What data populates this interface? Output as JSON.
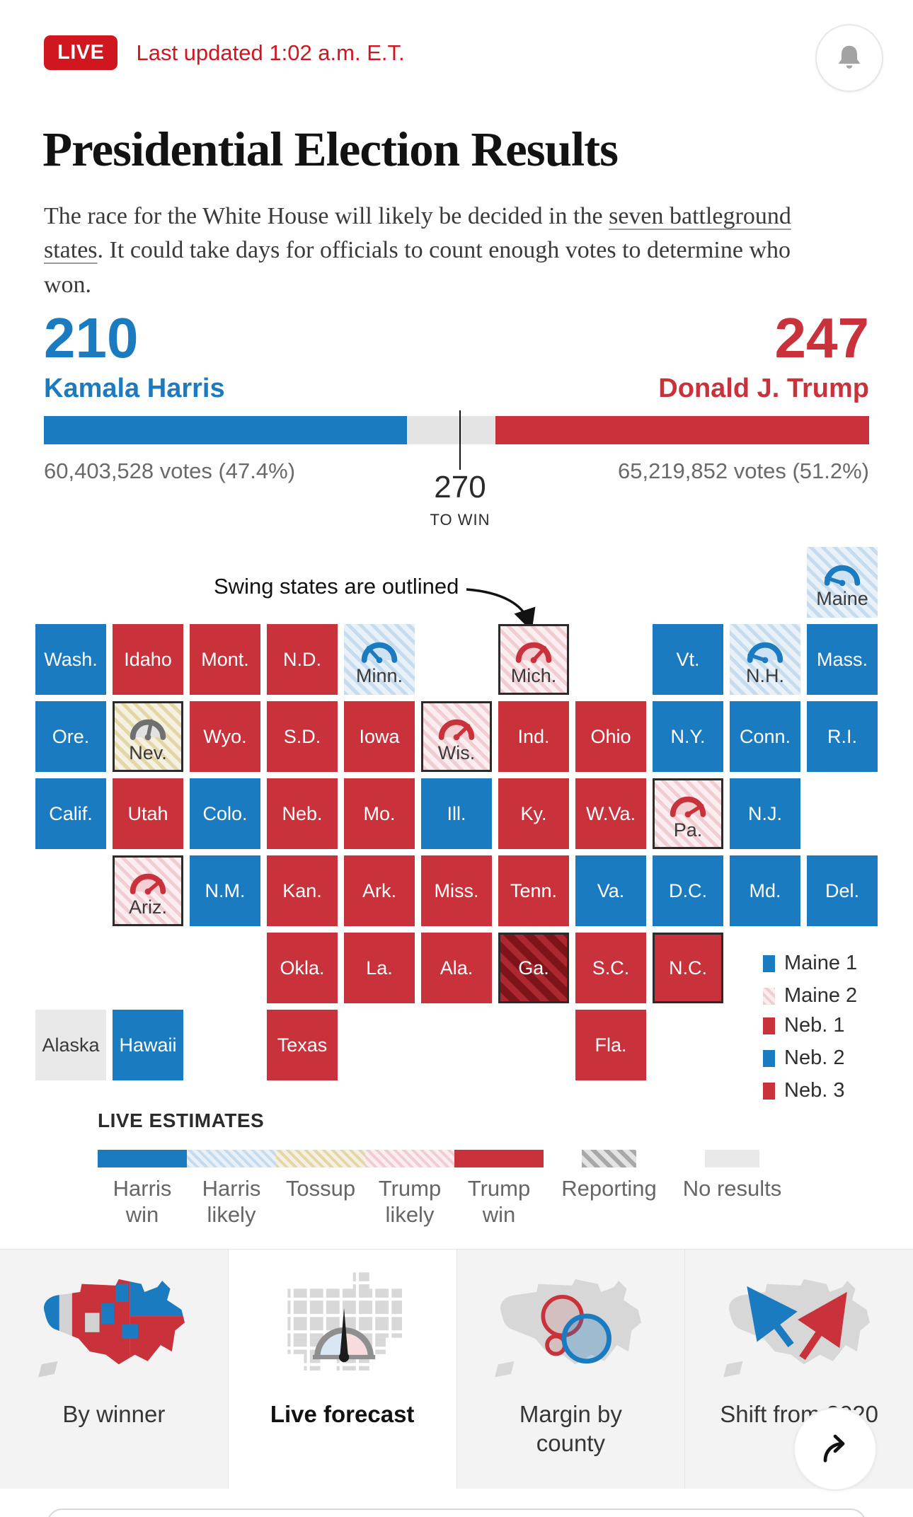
{
  "colors": {
    "accent_blue": "#1a7bc1",
    "accent_red": "#c9323b",
    "live_red": "#d0161f",
    "gray_bar": "#e4e4e4",
    "outline": "#2b2b2b"
  },
  "header": {
    "live_badge": "LIVE",
    "updated": "Last updated 1:02 a.m. E.T."
  },
  "hero": {
    "title": "Presidential Election Results",
    "dek_before": "The race for the White House will likely be decided in the ",
    "dek_link": "seven battleground states",
    "dek_after": ". It could take days for officials to count enough votes to determine who won."
  },
  "scoreboard": {
    "harris": {
      "ev": "210",
      "name": "Kamala Harris",
      "votes": "60,403,528 votes (47.4%)"
    },
    "trump": {
      "ev": "247",
      "name": "Donald J. Trump",
      "votes": "65,219,852 votes (51.2%)"
    },
    "marker": {
      "value": "270",
      "label": "TO WIN"
    }
  },
  "map": {
    "annotation": "Swing states are outlined",
    "legends": {
      "maine": [
        {
          "label": "Maine 1",
          "type": "harris-win"
        },
        {
          "label": "Maine 2",
          "type": "trump-likely"
        }
      ],
      "neb": [
        {
          "label": "Neb. 1",
          "type": "trump-win"
        },
        {
          "label": "Neb. 2",
          "type": "harris-win"
        },
        {
          "label": "Neb. 3",
          "type": "trump-win"
        }
      ]
    }
  },
  "chart_data": {
    "type": "heatmap",
    "title": "Presidential Election Results — electoral cartogram with live estimates",
    "summary": {
      "harris_electoral": 210,
      "trump_electoral": 247,
      "needed_to_win": 270,
      "harris_votes": "60,403,528",
      "harris_pct": 47.4,
      "trump_votes": "65,219,852",
      "trump_pct": 51.2
    },
    "legend_position": "below",
    "statuses": [
      "harris-win",
      "harris-likely",
      "tossup",
      "trump-likely",
      "trump-win",
      "reporting",
      "no-results"
    ],
    "cells": [
      {
        "label": "Maine",
        "row": 0,
        "col": 11,
        "status": "harris-likely",
        "outlined": false,
        "gauge": "blue",
        "angle": -72
      },
      {
        "label": "Wash.",
        "row": 1,
        "col": 1,
        "status": "harris-win",
        "outlined": false,
        "gauge": null
      },
      {
        "label": "Idaho",
        "row": 1,
        "col": 2,
        "status": "trump-win",
        "outlined": false,
        "gauge": null
      },
      {
        "label": "Mont.",
        "row": 1,
        "col": 3,
        "status": "trump-win",
        "outlined": false,
        "gauge": null
      },
      {
        "label": "N.D.",
        "row": 1,
        "col": 4,
        "status": "trump-win",
        "outlined": false,
        "gauge": null
      },
      {
        "label": "Minn.",
        "row": 1,
        "col": 5,
        "status": "harris-likely",
        "outlined": false,
        "gauge": "blue",
        "angle": -42
      },
      {
        "label": "Mich.",
        "row": 1,
        "col": 7,
        "status": "trump-likely",
        "outlined": true,
        "gauge": "red",
        "angle": 42
      },
      {
        "label": "Vt.",
        "row": 1,
        "col": 9,
        "status": "harris-win",
        "outlined": false,
        "gauge": null
      },
      {
        "label": "N.H.",
        "row": 1,
        "col": 10,
        "status": "harris-likely",
        "outlined": false,
        "gauge": "blue",
        "angle": -72
      },
      {
        "label": "Mass.",
        "row": 1,
        "col": 11,
        "status": "harris-win",
        "outlined": false,
        "gauge": null
      },
      {
        "label": "Ore.",
        "row": 2,
        "col": 1,
        "status": "harris-win",
        "outlined": false,
        "gauge": null
      },
      {
        "label": "Nev.",
        "row": 2,
        "col": 2,
        "status": "tossup",
        "outlined": true,
        "gauge": "gray",
        "angle": 12
      },
      {
        "label": "Wyo.",
        "row": 2,
        "col": 3,
        "status": "trump-win",
        "outlined": false,
        "gauge": null
      },
      {
        "label": "S.D.",
        "row": 2,
        "col": 4,
        "status": "trump-win",
        "outlined": false,
        "gauge": null
      },
      {
        "label": "Iowa",
        "row": 2,
        "col": 5,
        "status": "trump-win",
        "outlined": false,
        "gauge": null
      },
      {
        "label": "Wis.",
        "row": 2,
        "col": 6,
        "status": "trump-likely",
        "outlined": true,
        "gauge": "red",
        "angle": 46
      },
      {
        "label": "Ind.",
        "row": 2,
        "col": 7,
        "status": "trump-win",
        "outlined": false,
        "gauge": null
      },
      {
        "label": "Ohio",
        "row": 2,
        "col": 8,
        "status": "trump-win",
        "outlined": false,
        "gauge": null
      },
      {
        "label": "N.Y.",
        "row": 2,
        "col": 9,
        "status": "harris-win",
        "outlined": false,
        "gauge": null
      },
      {
        "label": "Conn.",
        "row": 2,
        "col": 10,
        "status": "harris-win",
        "outlined": false,
        "gauge": null
      },
      {
        "label": "R.I.",
        "row": 2,
        "col": 11,
        "status": "harris-win",
        "outlined": false,
        "gauge": null
      },
      {
        "label": "Calif.",
        "row": 3,
        "col": 1,
        "status": "harris-win",
        "outlined": false,
        "gauge": null
      },
      {
        "label": "Utah",
        "row": 3,
        "col": 2,
        "status": "trump-win",
        "outlined": false,
        "gauge": null
      },
      {
        "label": "Colo.",
        "row": 3,
        "col": 3,
        "status": "harris-win",
        "outlined": false,
        "gauge": null
      },
      {
        "label": "Neb.",
        "row": 3,
        "col": 4,
        "status": "trump-win",
        "outlined": false,
        "gauge": null
      },
      {
        "label": "Mo.",
        "row": 3,
        "col": 5,
        "status": "trump-win",
        "outlined": false,
        "gauge": null
      },
      {
        "label": "Ill.",
        "row": 3,
        "col": 6,
        "status": "harris-win",
        "outlined": false,
        "gauge": null
      },
      {
        "label": "Ky.",
        "row": 3,
        "col": 7,
        "status": "trump-win",
        "outlined": false,
        "gauge": null
      },
      {
        "label": "W.Va.",
        "row": 3,
        "col": 8,
        "status": "trump-win",
        "outlined": false,
        "gauge": null
      },
      {
        "label": "Pa.",
        "row": 3,
        "col": 9,
        "status": "trump-likely",
        "outlined": true,
        "gauge": "red",
        "angle": 58
      },
      {
        "label": "N.J.",
        "row": 3,
        "col": 10,
        "status": "harris-win",
        "outlined": false,
        "gauge": null
      },
      {
        "label": "Ariz.",
        "row": 4,
        "col": 2,
        "status": "trump-likely",
        "outlined": true,
        "gauge": "red",
        "angle": 50
      },
      {
        "label": "N.M.",
        "row": 4,
        "col": 3,
        "status": "harris-win",
        "outlined": false,
        "gauge": null
      },
      {
        "label": "Kan.",
        "row": 4,
        "col": 4,
        "status": "trump-win",
        "outlined": false,
        "gauge": null
      },
      {
        "label": "Ark.",
        "row": 4,
        "col": 5,
        "status": "trump-win",
        "outlined": false,
        "gauge": null
      },
      {
        "label": "Miss.",
        "row": 4,
        "col": 6,
        "status": "trump-win",
        "outlined": false,
        "gauge": null
      },
      {
        "label": "Tenn.",
        "row": 4,
        "col": 7,
        "status": "trump-win",
        "outlined": false,
        "gauge": null
      },
      {
        "label": "Va.",
        "row": 4,
        "col": 8,
        "status": "harris-win",
        "outlined": false,
        "gauge": null
      },
      {
        "label": "D.C.",
        "row": 4,
        "col": 9,
        "status": "harris-win",
        "outlined": false,
        "gauge": null
      },
      {
        "label": "Md.",
        "row": 4,
        "col": 10,
        "status": "harris-win",
        "outlined": false,
        "gauge": null
      },
      {
        "label": "Del.",
        "row": 4,
        "col": 11,
        "status": "harris-win",
        "outlined": false,
        "gauge": null
      },
      {
        "label": "Okla.",
        "row": 5,
        "col": 4,
        "status": "trump-win",
        "outlined": false,
        "gauge": null
      },
      {
        "label": "La.",
        "row": 5,
        "col": 5,
        "status": "trump-win",
        "outlined": false,
        "gauge": null
      },
      {
        "label": "Ala.",
        "row": 5,
        "col": 6,
        "status": "trump-win",
        "outlined": false,
        "gauge": null
      },
      {
        "label": "Ga.",
        "row": 5,
        "col": 7,
        "status": "reporting-red",
        "outlined": true,
        "gauge": null
      },
      {
        "label": "S.C.",
        "row": 5,
        "col": 8,
        "status": "trump-win",
        "outlined": false,
        "gauge": null
      },
      {
        "label": "N.C.",
        "row": 5,
        "col": 9,
        "status": "trump-win",
        "outlined": true,
        "gauge": null
      },
      {
        "label": "Alaska",
        "row": 6,
        "col": 1,
        "status": "no-results",
        "outlined": false,
        "gauge": null
      },
      {
        "label": "Hawaii",
        "row": 6,
        "col": 2,
        "status": "harris-win",
        "outlined": false,
        "gauge": null
      },
      {
        "label": "Texas",
        "row": 6,
        "col": 4,
        "status": "trump-win",
        "outlined": false,
        "gauge": null
      },
      {
        "label": "Fla.",
        "row": 6,
        "col": 8,
        "status": "trump-win",
        "outlined": false,
        "gauge": null
      }
    ]
  },
  "estimates": {
    "title": "LIVE ESTIMATES",
    "items": [
      {
        "label": "Harris\nwin",
        "type": "harris-win"
      },
      {
        "label": "Harris\nlikely",
        "type": "harris-likely"
      },
      {
        "label": "Tossup",
        "type": "tossup"
      },
      {
        "label": "Trump\nlikely",
        "type": "trump-likely"
      },
      {
        "label": "Trump\nwin",
        "type": "trump-win"
      },
      {
        "label": "Reporting",
        "type": "reporting"
      },
      {
        "label": "No results",
        "type": "no-results"
      }
    ]
  },
  "tabs": [
    {
      "label": "By winner",
      "selected": false
    },
    {
      "label": "Live forecast",
      "selected": true
    },
    {
      "label": "Margin by county",
      "selected": false
    },
    {
      "label": "Shift from 2020",
      "selected": false
    }
  ]
}
